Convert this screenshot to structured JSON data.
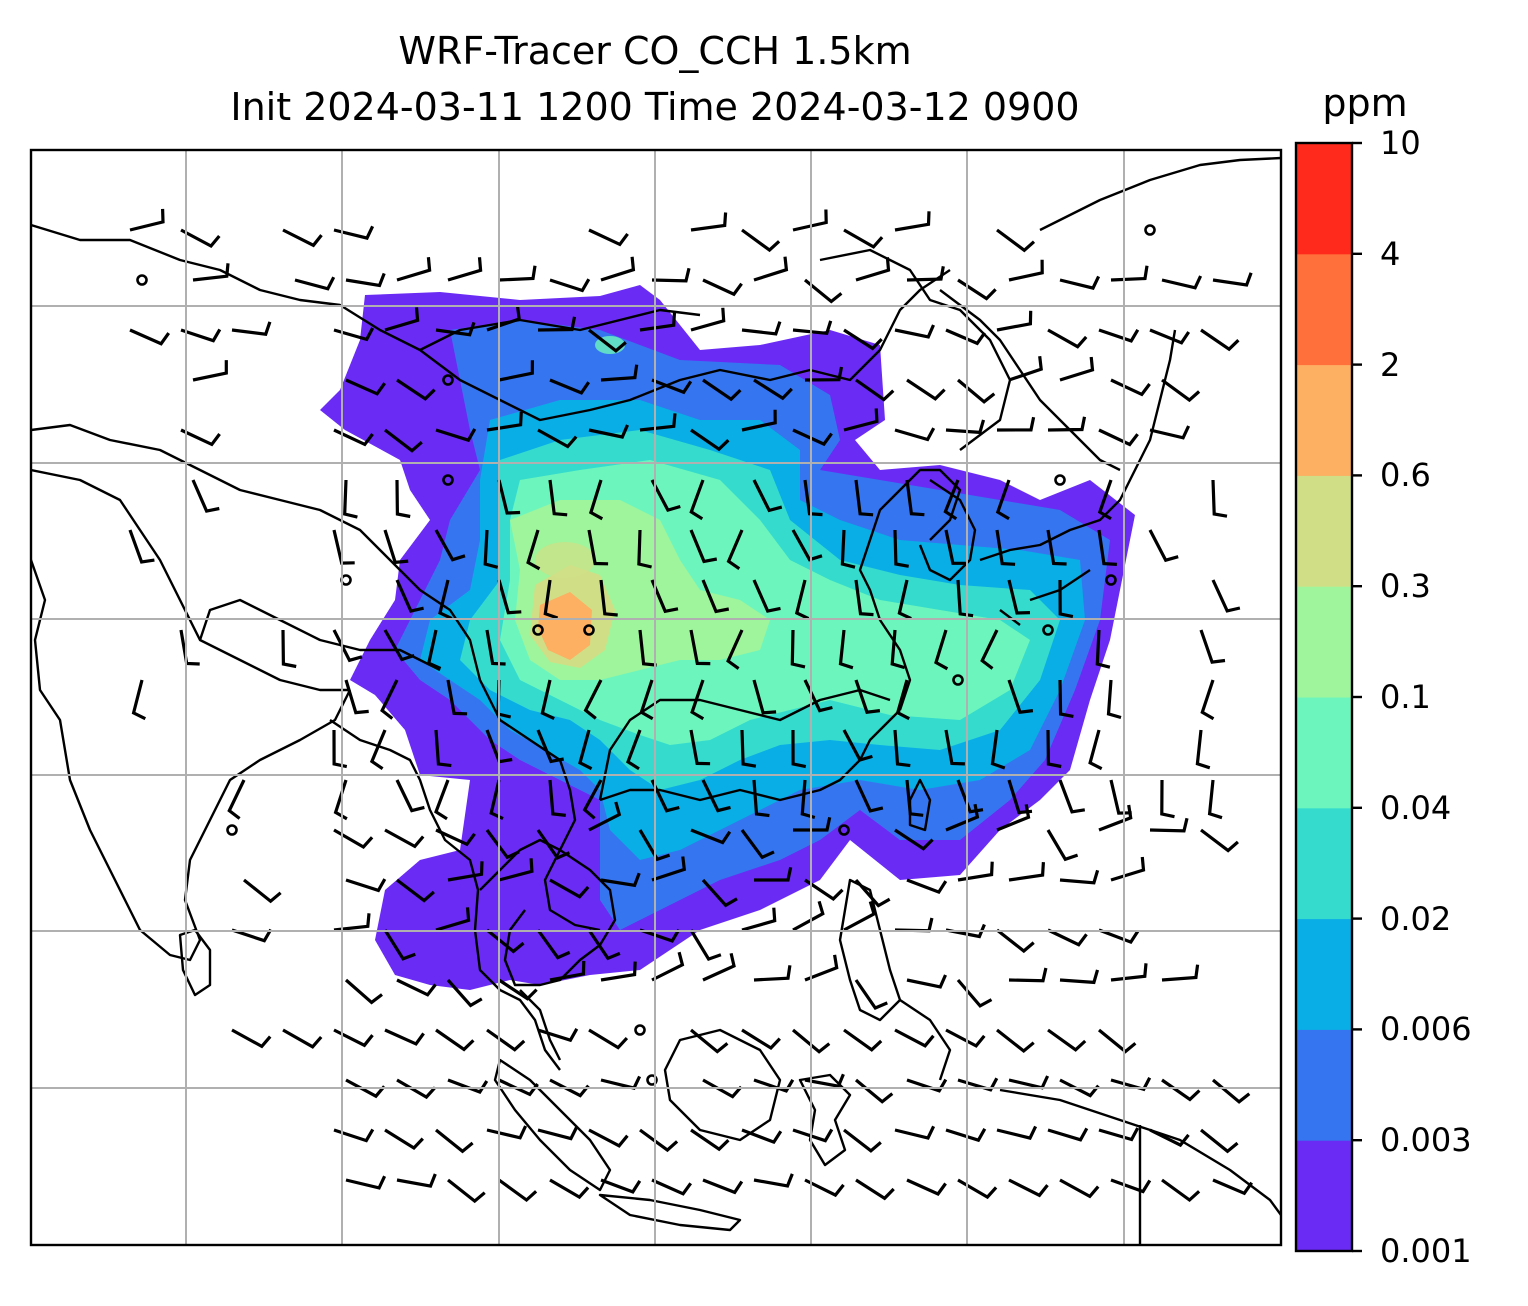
{
  "title": {
    "line1": "WRF-Tracer CO_CCH 1.5km",
    "line2": "Init 2024-03-11 1200 Time 2024-03-12 0900"
  },
  "colorbar": {
    "unit": "ppm",
    "ticks": [
      "0.001",
      "0.003",
      "0.006",
      "0.02",
      "0.04",
      "0.1",
      "0.3",
      "0.6",
      "2",
      "4",
      "10"
    ],
    "colors": [
      "#6a2bf5",
      "#3675f0",
      "#0aaee6",
      "#35dccd",
      "#6cf6bd",
      "#9ff59b",
      "#d0df86",
      "#fdaf62",
      "#ff703a",
      "#ff2a1c"
    ]
  },
  "map": {
    "gridline_color": "#b0b0b0",
    "coastline_color": "#000000",
    "gridlines": true
  }
}
